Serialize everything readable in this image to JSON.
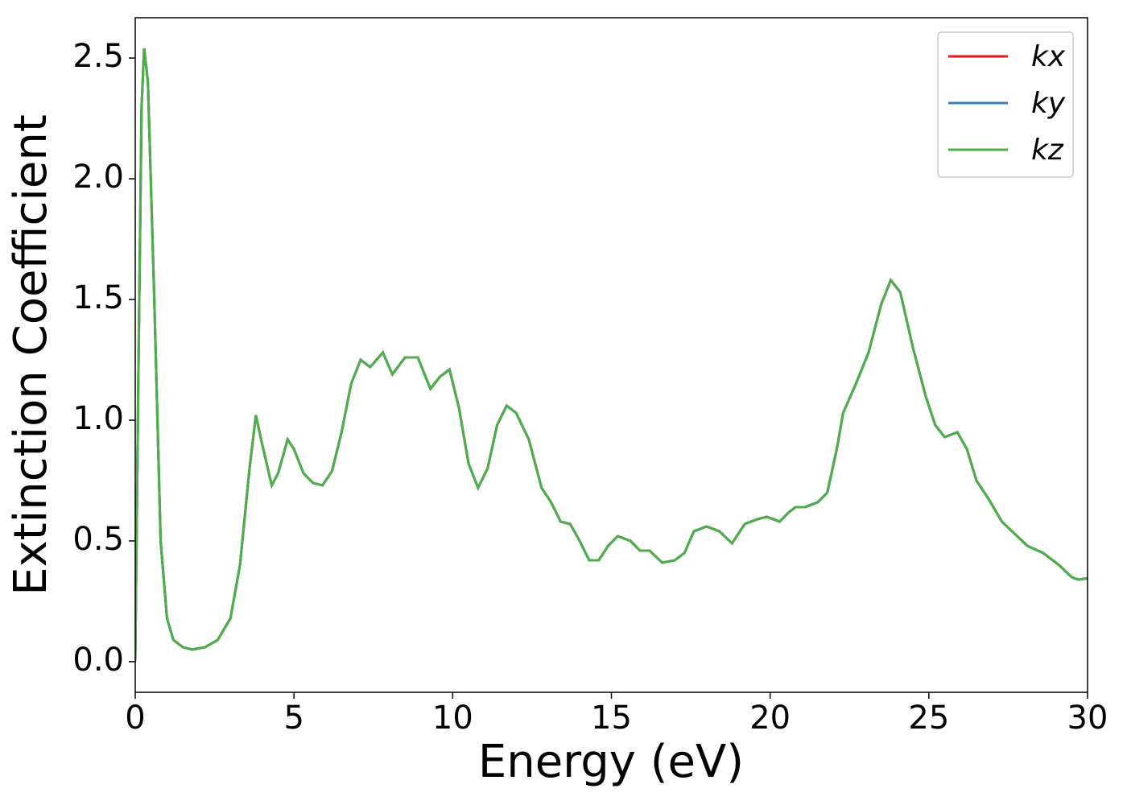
{
  "chart_data": {
    "type": "line",
    "xlabel": "Energy (eV)",
    "ylabel": "Extinction Coefficient",
    "x": [
      0,
      0.1,
      0.2,
      0.28,
      0.4,
      0.6,
      0.8,
      1.0,
      1.2,
      1.5,
      1.8,
      2.2,
      2.6,
      3.0,
      3.3,
      3.6,
      3.8,
      4.0,
      4.3,
      4.5,
      4.8,
      5.0,
      5.3,
      5.6,
      5.9,
      6.2,
      6.5,
      6.8,
      7.1,
      7.4,
      7.8,
      8.1,
      8.5,
      8.9,
      9.3,
      9.6,
      9.9,
      10.2,
      10.5,
      10.8,
      11.1,
      11.4,
      11.7,
      12.0,
      12.4,
      12.8,
      13.1,
      13.4,
      13.7,
      14.0,
      14.3,
      14.6,
      14.9,
      15.2,
      15.6,
      15.9,
      16.2,
      16.6,
      17.0,
      17.3,
      17.6,
      18.0,
      18.4,
      18.8,
      19.2,
      19.6,
      19.9,
      20.3,
      20.6,
      20.8,
      21.1,
      21.5,
      21.8,
      22.1,
      22.3,
      22.7,
      23.1,
      23.5,
      23.8,
      24.1,
      24.5,
      24.9,
      25.2,
      25.5,
      25.9,
      26.2,
      26.5,
      26.9,
      27.3,
      27.7,
      28.1,
      28.6,
      29.1,
      29.5,
      29.7,
      30.0
    ],
    "series": [
      {
        "name": "kx",
        "color": "#e41a1c",
        "values": [
          0,
          1.2,
          2.3,
          2.54,
          2.4,
          1.5,
          0.5,
          0.18,
          0.09,
          0.06,
          0.05,
          0.06,
          0.09,
          0.18,
          0.4,
          0.8,
          1.02,
          0.9,
          0.73,
          0.78,
          0.92,
          0.88,
          0.78,
          0.74,
          0.73,
          0.79,
          0.95,
          1.15,
          1.25,
          1.22,
          1.28,
          1.19,
          1.26,
          1.26,
          1.13,
          1.18,
          1.21,
          1.05,
          0.82,
          0.72,
          0.8,
          0.98,
          1.06,
          1.03,
          0.92,
          0.72,
          0.66,
          0.58,
          0.57,
          0.5,
          0.42,
          0.42,
          0.48,
          0.52,
          0.5,
          0.46,
          0.46,
          0.41,
          0.42,
          0.45,
          0.54,
          0.56,
          0.54,
          0.49,
          0.57,
          0.59,
          0.6,
          0.58,
          0.62,
          0.64,
          0.64,
          0.66,
          0.7,
          0.88,
          1.03,
          1.15,
          1.28,
          1.48,
          1.58,
          1.53,
          1.3,
          1.1,
          0.98,
          0.93,
          0.95,
          0.88,
          0.75,
          0.67,
          0.58,
          0.53,
          0.48,
          0.45,
          0.4,
          0.35,
          0.34,
          0.345
        ]
      },
      {
        "name": "ky",
        "color": "#377eb8",
        "values": [
          0,
          1.2,
          2.3,
          2.54,
          2.4,
          1.5,
          0.5,
          0.18,
          0.09,
          0.06,
          0.05,
          0.06,
          0.09,
          0.18,
          0.4,
          0.8,
          1.02,
          0.9,
          0.73,
          0.78,
          0.92,
          0.88,
          0.78,
          0.74,
          0.73,
          0.79,
          0.95,
          1.15,
          1.25,
          1.22,
          1.28,
          1.19,
          1.26,
          1.26,
          1.13,
          1.18,
          1.21,
          1.05,
          0.82,
          0.72,
          0.8,
          0.98,
          1.06,
          1.03,
          0.92,
          0.72,
          0.66,
          0.58,
          0.57,
          0.5,
          0.42,
          0.42,
          0.48,
          0.52,
          0.5,
          0.46,
          0.46,
          0.41,
          0.42,
          0.45,
          0.54,
          0.56,
          0.54,
          0.49,
          0.57,
          0.59,
          0.6,
          0.58,
          0.62,
          0.64,
          0.64,
          0.66,
          0.7,
          0.88,
          1.03,
          1.15,
          1.28,
          1.48,
          1.58,
          1.53,
          1.3,
          1.1,
          0.98,
          0.93,
          0.95,
          0.88,
          0.75,
          0.67,
          0.58,
          0.53,
          0.48,
          0.45,
          0.4,
          0.35,
          0.34,
          0.345
        ]
      },
      {
        "name": "kz",
        "color": "#4daf4a",
        "values": [
          0,
          1.2,
          2.3,
          2.54,
          2.4,
          1.5,
          0.5,
          0.18,
          0.09,
          0.06,
          0.05,
          0.06,
          0.09,
          0.18,
          0.4,
          0.8,
          1.02,
          0.9,
          0.73,
          0.78,
          0.92,
          0.88,
          0.78,
          0.74,
          0.73,
          0.79,
          0.95,
          1.15,
          1.25,
          1.22,
          1.28,
          1.19,
          1.26,
          1.26,
          1.13,
          1.18,
          1.21,
          1.05,
          0.82,
          0.72,
          0.8,
          0.98,
          1.06,
          1.03,
          0.92,
          0.72,
          0.66,
          0.58,
          0.57,
          0.5,
          0.42,
          0.42,
          0.48,
          0.52,
          0.5,
          0.46,
          0.46,
          0.41,
          0.42,
          0.45,
          0.54,
          0.56,
          0.54,
          0.49,
          0.57,
          0.59,
          0.6,
          0.58,
          0.62,
          0.64,
          0.64,
          0.66,
          0.7,
          0.88,
          1.03,
          1.15,
          1.28,
          1.48,
          1.58,
          1.53,
          1.3,
          1.1,
          0.98,
          0.93,
          0.95,
          0.88,
          0.75,
          0.67,
          0.58,
          0.53,
          0.48,
          0.45,
          0.4,
          0.35,
          0.34,
          0.345
        ]
      }
    ],
    "xlim": [
      0,
      30
    ],
    "xticks": [
      0,
      5,
      10,
      15,
      20,
      25,
      30
    ],
    "ylim": [
      -0.127,
      2.667
    ],
    "yticks": [
      {
        "value": 0,
        "label": "0.0"
      },
      0.5,
      {
        "value": 1,
        "label": "1.0"
      },
      1.5,
      {
        "value": 2,
        "label": "2.0"
      },
      2.5
    ],
    "grid": false,
    "legend": "upper right"
  }
}
